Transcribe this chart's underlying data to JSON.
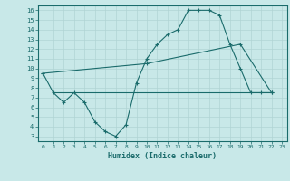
{
  "title": "",
  "xlabel": "Humidex (Indice chaleur)",
  "ylabel": "",
  "bg_color": "#c8e8e8",
  "line_color": "#1a6b6b",
  "grid_color": "#b0d4d4",
  "xlim": [
    -0.5,
    23.5
  ],
  "ylim": [
    2.5,
    16.5
  ],
  "xticks": [
    0,
    1,
    2,
    3,
    4,
    5,
    6,
    7,
    8,
    9,
    10,
    11,
    12,
    13,
    14,
    15,
    16,
    17,
    18,
    19,
    20,
    21,
    22,
    23
  ],
  "yticks": [
    3,
    4,
    5,
    6,
    7,
    8,
    9,
    10,
    11,
    12,
    13,
    14,
    15,
    16
  ],
  "line1_x": [
    0,
    1,
    2,
    3,
    4,
    5,
    6,
    7,
    8,
    9,
    10,
    11,
    12,
    13,
    14,
    15,
    16,
    17,
    18,
    19,
    20,
    21,
    22
  ],
  "line1_y": [
    9.5,
    7.5,
    6.5,
    7.5,
    6.5,
    4.5,
    3.5,
    3.0,
    4.2,
    8.5,
    11.0,
    12.5,
    13.5,
    14.0,
    16.0,
    16.0,
    16.0,
    15.5,
    12.5,
    10.0,
    7.5,
    7.5,
    7.5
  ],
  "line2_x": [
    0,
    10,
    19,
    22
  ],
  "line2_y": [
    9.5,
    10.5,
    12.5,
    7.5
  ],
  "line3_x": [
    1,
    22
  ],
  "line3_y": [
    7.5,
    7.5
  ]
}
